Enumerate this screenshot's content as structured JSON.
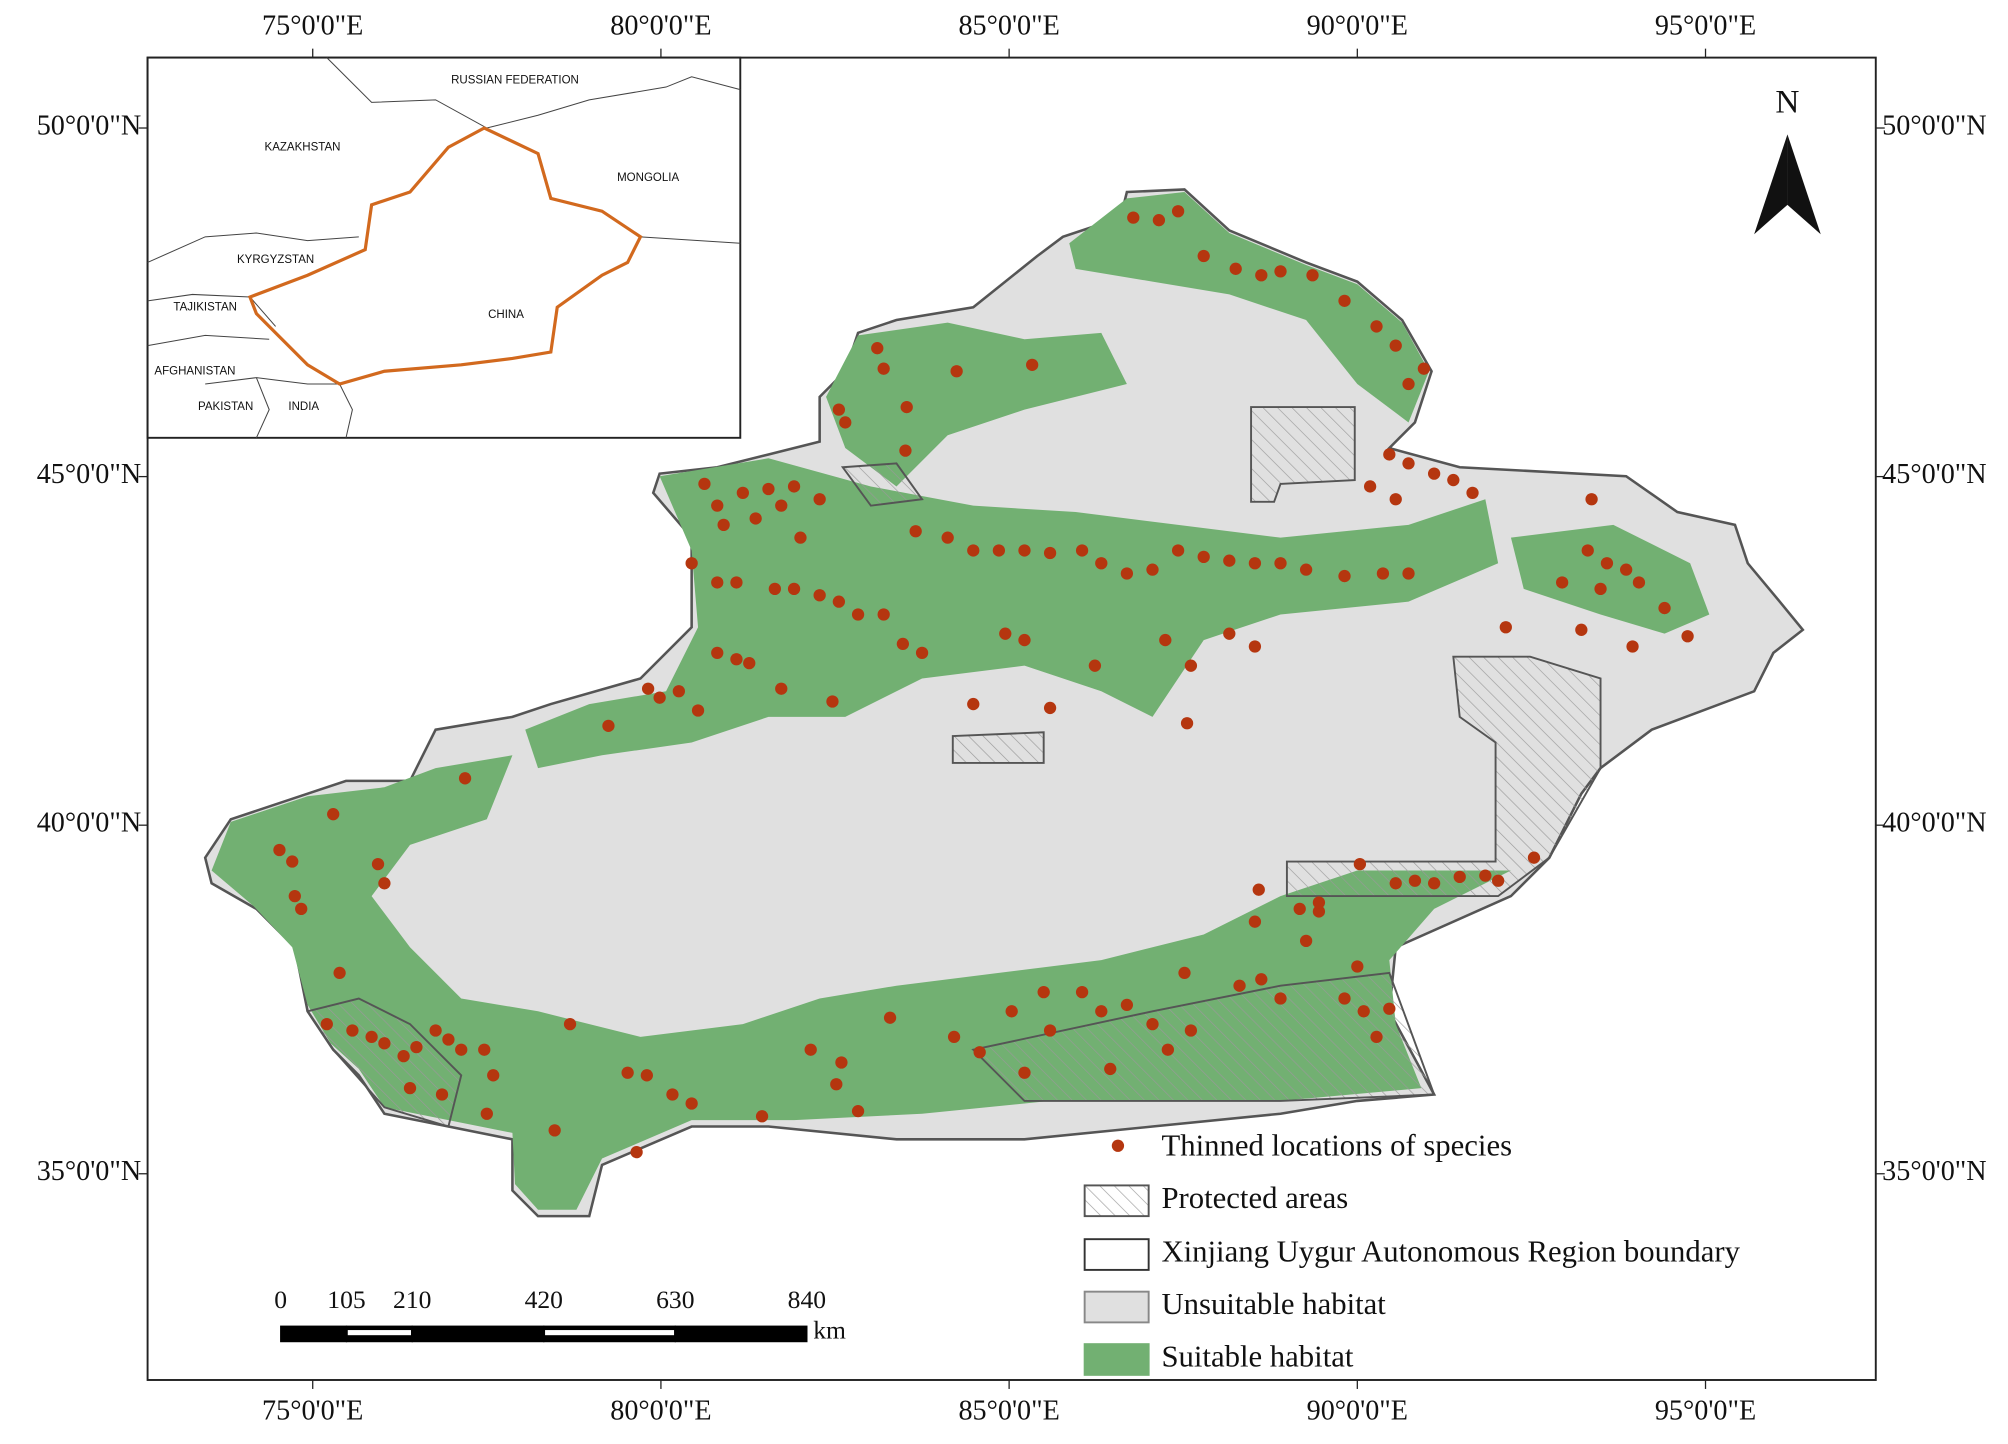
{
  "map": {
    "lon_labels": [
      "75°0'0\"E",
      "80°0'0\"E",
      "85°0'0\"E",
      "90°0'0\"E",
      "95°0'0\"E"
    ],
    "lat_labels": [
      "50°0'0\"N",
      "45°0'0\"N",
      "40°0'0\"N",
      "35°0'0\"N"
    ],
    "north_label": "N",
    "inset_labels": [
      "RUSSIAN FEDERATION",
      "KAZAKHSTAN",
      "MONGOLIA",
      "KYRGYZSTAN",
      "TAJIKISTAN",
      "CHINA",
      "AFGHANISTAN",
      "PAKISTAN",
      "INDIA"
    ],
    "scale_bar": {
      "ticks": [
        0,
        105,
        210,
        420,
        630,
        840
      ],
      "unit": "km"
    },
    "legend": [
      "Thinned locations of species",
      "Protected areas",
      "Xinjiang Uygur Autonomous Region boundary",
      "Unsuitable habitat",
      "Suitable habitat"
    ]
  }
}
